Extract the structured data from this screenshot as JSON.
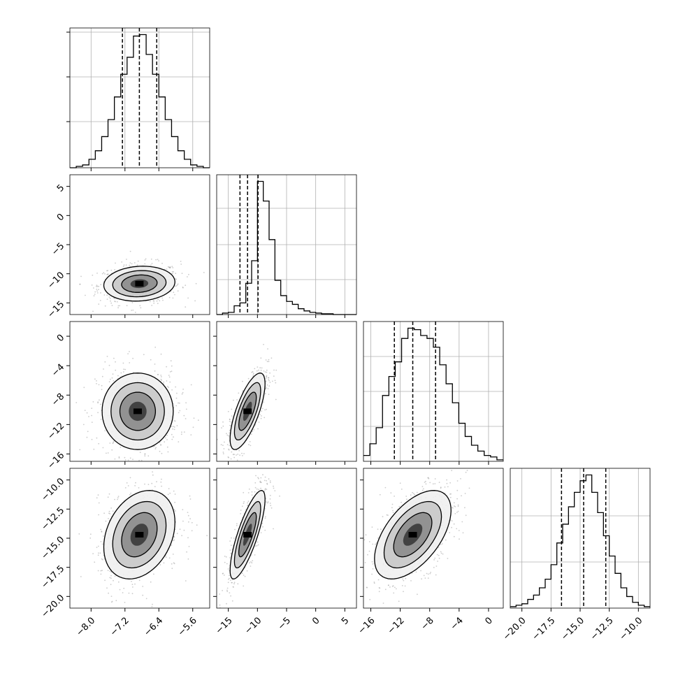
{
  "chart_data": {
    "type": "corner",
    "title": "",
    "parameters": [
      {
        "range": [
          -8.5,
          -5.2
        ],
        "ticks": [
          -8.0,
          -7.2,
          -6.4,
          -5.6
        ],
        "tick_labels": [
          "−8.0",
          "−7.2",
          "−6.4",
          "−5.6"
        ],
        "quantiles": [
          -7.26,
          -6.86,
          -6.45
        ],
        "hist": [
          0,
          1,
          2,
          6,
          12,
          22,
          34,
          50,
          66,
          78,
          93,
          94,
          80,
          66,
          50,
          34,
          22,
          12,
          6,
          2,
          1,
          0
        ],
        "diag_gridlines": [
          0.33,
          0.65,
          0.97
        ],
        "label": ""
      },
      {
        "range": [
          -17,
          7
        ],
        "ticks": [
          -15,
          -10,
          -5,
          0,
          5
        ],
        "tick_labels": [
          "−15",
          "−10",
          "−5",
          "0",
          "5"
        ],
        "quantiles": [
          -13.0,
          -11.7,
          -9.9
        ],
        "hist": [
          0,
          2,
          3,
          12,
          16,
          43,
          74,
          183,
          156,
          103,
          47,
          26,
          18,
          14,
          8,
          5,
          3,
          2,
          1,
          1,
          0,
          0,
          0,
          0
        ],
        "diag_gridlines": [
          0.25,
          0.5,
          0.76
        ],
        "label": ""
      },
      {
        "range": [
          -17,
          2
        ],
        "ticks": [
          -16,
          -12,
          -8,
          -4,
          0
        ],
        "tick_labels": [
          "−16",
          "−12",
          "−8",
          "−4",
          "0"
        ],
        "quantiles": [
          -12.8,
          -10.3,
          -7.2
        ],
        "hist": [
          4,
          12,
          23,
          45,
          58,
          68,
          84,
          91,
          90,
          86,
          84,
          78,
          66,
          53,
          40,
          26,
          17,
          11,
          7,
          4,
          3,
          1
        ],
        "diag_gridlines": [
          0.25,
          0.5,
          0.75
        ],
        "label": ""
      },
      {
        "range": [
          -21,
          -9
        ],
        "ticks": [
          -20.0,
          -17.5,
          -15.0,
          -12.5,
          -10.0
        ],
        "tick_labels": [
          "−20.0",
          "−17.5",
          "−15.0",
          "−12.5",
          "−10.0"
        ],
        "quantiles": [
          -16.6,
          -14.7,
          -12.8
        ],
        "hist": [
          1,
          2,
          3,
          6,
          9,
          14,
          20,
          30,
          45,
          58,
          70,
          80,
          88,
          92,
          80,
          66,
          50,
          36,
          24,
          14,
          8,
          4,
          2,
          1
        ],
        "diag_gridlines": [
          0.33,
          0.66
        ],
        "label": ""
      }
    ],
    "y_tick_labels": {
      "1": [
        "5",
        "0",
        "−5",
        "−10",
        "−15"
      ],
      "2": [
        "0",
        "−4",
        "−8",
        "−12",
        "−16"
      ],
      "3": [
        "−10.0",
        "−12.5",
        "−15.0",
        "−17.5",
        "−20.0"
      ]
    },
    "pairs": {
      "1_0": {
        "mean": [
          -6.86,
          -11.7
        ],
        "sd": [
          0.42,
          1.5
        ],
        "rho": 0.1
      },
      "2_0": {
        "mean": [
          -6.9,
          -10.2
        ],
        "sd": [
          0.42,
          2.6
        ],
        "rho": 0.0
      },
      "2_1": {
        "mean": [
          -11.7,
          -10.2
        ],
        "sd": [
          1.5,
          2.6
        ],
        "rho": 0.72
      },
      "3_0": {
        "mean": [
          -6.86,
          -14.7
        ],
        "sd": [
          0.42,
          1.9
        ],
        "rho": 0.28
      },
      "3_1": {
        "mean": [
          -11.7,
          -14.7
        ],
        "sd": [
          1.5,
          1.9
        ],
        "rho": 0.8
      },
      "3_2": {
        "mean": [
          -10.3,
          -14.7
        ],
        "sd": [
          2.6,
          1.9
        ],
        "rho": 0.55
      }
    },
    "contour_levels_sigma": [
      0.5,
      1.0,
      1.5,
      2.0
    ],
    "grid": true,
    "legend": "none"
  }
}
